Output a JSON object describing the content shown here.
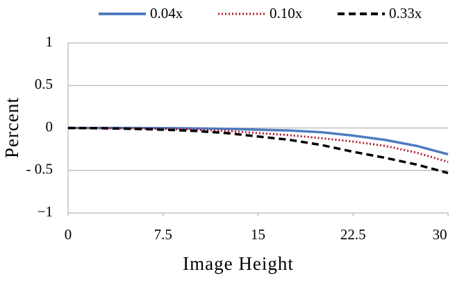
{
  "chart_data": {
    "type": "line",
    "x_label": "Image Height",
    "y_label": "Percent",
    "x": [
      0,
      2.5,
      5,
      7.5,
      10,
      12.5,
      15,
      17.5,
      20,
      22.5,
      25,
      27.5,
      30
    ],
    "series": [
      {
        "name": "0.04x",
        "color": "#4f7bbf",
        "style": "solid",
        "values": [
          0,
          0,
          0,
          -0.002,
          -0.005,
          -0.01,
          -0.02,
          -0.03,
          -0.05,
          -0.09,
          -0.14,
          -0.21,
          -0.31
        ]
      },
      {
        "name": "0.10x",
        "color": "#b0182a",
        "style": "dotted",
        "values": [
          0,
          -0.001,
          -0.004,
          -0.01,
          -0.02,
          -0.035,
          -0.06,
          -0.085,
          -0.12,
          -0.16,
          -0.21,
          -0.29,
          -0.4
        ]
      },
      {
        "name": "0.33x",
        "color": "#000000",
        "style": "dashed",
        "values": [
          0,
          -0.003,
          -0.01,
          -0.02,
          -0.035,
          -0.06,
          -0.1,
          -0.14,
          -0.2,
          -0.28,
          -0.35,
          -0.43,
          -0.53
        ]
      }
    ],
    "xlim": [
      0,
      30
    ],
    "xticks": [
      0,
      7.5,
      15,
      22.5,
      30
    ],
    "ylim": [
      -1,
      1
    ],
    "yticks": [
      1,
      0.5,
      0,
      {
        "value": -0.5,
        "label": "- 0.5"
      },
      {
        "value": -1,
        "label": "−1"
      }
    ],
    "grid": true,
    "legend": "top"
  }
}
